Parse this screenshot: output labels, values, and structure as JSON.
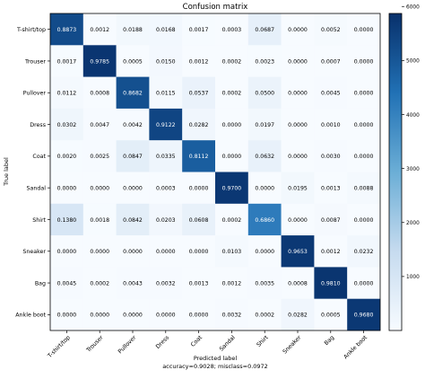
{
  "chart_data": {
    "type": "heatmap",
    "title": "Confusion matrix",
    "ylabel": "True label",
    "xlabel": "Predicted label",
    "summary": "accuracy=0.9028; misclass=0.0972",
    "row_labels": [
      "T-shirt/top",
      "Trouser",
      "Pullover",
      "Dress",
      "Coat",
      "Sandal",
      "Shirt",
      "Sneaker",
      "Bag",
      "Ankle boot"
    ],
    "col_labels": [
      "T-shirt/top",
      "Trouser",
      "Pullover",
      "Dress",
      "Coat",
      "Sandal",
      "Shirt",
      "Sneaker",
      "Bag",
      "Ankle boot"
    ],
    "cell_labels": [
      [
        "0.8873",
        "0.0012",
        "0.0188",
        "0.0168",
        "0.0017",
        "0.0003",
        "0.0687",
        "0.0000",
        "0.0052",
        "0.0000"
      ],
      [
        "0.0017",
        "0.9785",
        "0.0005",
        "0.0150",
        "0.0012",
        "0.0002",
        "0.0023",
        "0.0000",
        "0.0007",
        "0.0000"
      ],
      [
        "0.0112",
        "0.0008",
        "0.8682",
        "0.0115",
        "0.0537",
        "0.0002",
        "0.0500",
        "0.0000",
        "0.0045",
        "0.0000"
      ],
      [
        "0.0302",
        "0.0047",
        "0.0042",
        "0.9122",
        "0.0282",
        "0.0000",
        "0.0197",
        "0.0000",
        "0.0010",
        "0.0000"
      ],
      [
        "0.0020",
        "0.0025",
        "0.0847",
        "0.0335",
        "0.8112",
        "0.0000",
        "0.0632",
        "0.0000",
        "0.0030",
        "0.0000"
      ],
      [
        "0.0000",
        "0.0000",
        "0.0000",
        "0.0003",
        "0.0000",
        "0.9700",
        "0.0000",
        "0.0195",
        "0.0013",
        "0.0088"
      ],
      [
        "0.1380",
        "0.0018",
        "0.0842",
        "0.0203",
        "0.0608",
        "0.0002",
        "0.6860",
        "0.0000",
        "0.0087",
        "0.0000"
      ],
      [
        "0.0000",
        "0.0000",
        "0.0000",
        "0.0000",
        "0.0000",
        "0.0103",
        "0.0000",
        "0.9653",
        "0.0012",
        "0.0232"
      ],
      [
        "0.0045",
        "0.0002",
        "0.0043",
        "0.0032",
        "0.0013",
        "0.0012",
        "0.0035",
        "0.0008",
        "0.9810",
        "0.0000"
      ],
      [
        "0.0000",
        "0.0000",
        "0.0000",
        "0.0000",
        "0.0000",
        "0.0032",
        "0.0002",
        "0.0282",
        "0.0005",
        "0.9680"
      ]
    ],
    "colorbar": {
      "ticks": [
        1000,
        2000,
        3000,
        4000,
        5000,
        6000
      ],
      "range": [
        0,
        5871
      ]
    },
    "colormap": {
      "low": "#f7fbff",
      "high": "#08306b"
    },
    "colors": {
      "text_dark": "#000000",
      "text_light": "#ffffff"
    }
  }
}
